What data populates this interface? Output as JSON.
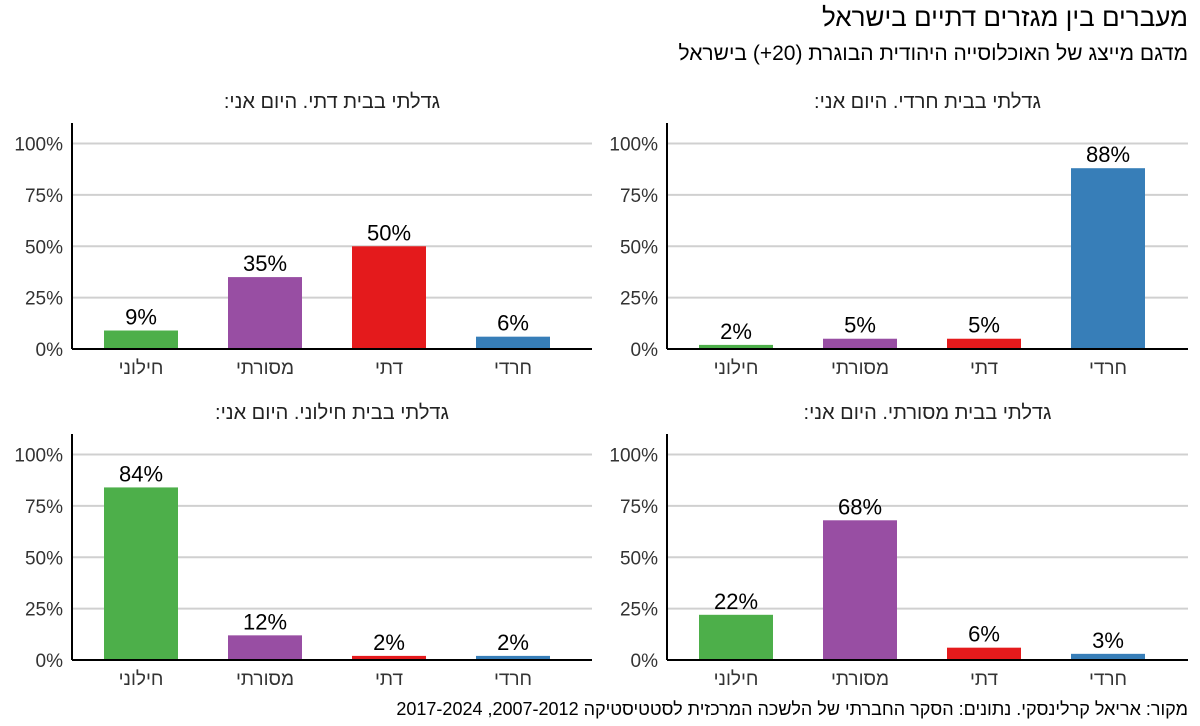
{
  "title": "מעברים בין מגזרים דתיים בישראל",
  "subtitle": "מדגם מייצג של האוכלוסייה היהודית הבוגרת (20+) בישראל",
  "source": "מקור: אריאל קרלינסקי. נתונים: הסקר החברתי של הלשכה המרכזית לסטטיסטיקה 2007-2012, 2017-2024",
  "colors": {
    "secular": "#4daf4a",
    "traditional": "#984ea3",
    "religious": "#e41a1c",
    "haredi": "#377eb8"
  },
  "chart_data": [
    {
      "type": "bar",
      "title": "גדלתי בבית חרדי. היום אני:",
      "categories": [
        "חילוני",
        "מסורתי",
        "דתי",
        "חרדי"
      ],
      "values": [
        2,
        5,
        5,
        88
      ],
      "value_labels": [
        "2%",
        "5%",
        "5%",
        "88%"
      ],
      "yticks": [
        "0%",
        "25%",
        "50%",
        "75%",
        "100%"
      ],
      "ylim": [
        0,
        110
      ],
      "grid": true
    },
    {
      "type": "bar",
      "title": "גדלתי בבית דתי. היום אני:",
      "categories": [
        "חילוני",
        "מסורתי",
        "דתי",
        "חרדי"
      ],
      "values": [
        9,
        35,
        50,
        6
      ],
      "value_labels": [
        "9%",
        "35%",
        "50%",
        "6%"
      ],
      "yticks": [
        "0%",
        "25%",
        "50%",
        "75%",
        "100%"
      ],
      "ylim": [
        0,
        110
      ],
      "grid": true
    },
    {
      "type": "bar",
      "title": "גדלתי בבית מסורתי. היום אני:",
      "categories": [
        "חילוני",
        "מסורתי",
        "דתי",
        "חרדי"
      ],
      "values": [
        22,
        68,
        6,
        3
      ],
      "value_labels": [
        "22%",
        "68%",
        "6%",
        "3%"
      ],
      "yticks": [
        "0%",
        "25%",
        "50%",
        "75%",
        "100%"
      ],
      "ylim": [
        0,
        110
      ],
      "grid": true
    },
    {
      "type": "bar",
      "title": "גדלתי בבית חילוני. היום אני:",
      "categories": [
        "חילוני",
        "מסורתי",
        "דתי",
        "חרדי"
      ],
      "values": [
        84,
        12,
        2,
        2
      ],
      "value_labels": [
        "84%",
        "12%",
        "2%",
        "2%"
      ],
      "yticks": [
        "0%",
        "25%",
        "50%",
        "75%",
        "100%"
      ],
      "ylim": [
        0,
        110
      ],
      "grid": true
    }
  ]
}
